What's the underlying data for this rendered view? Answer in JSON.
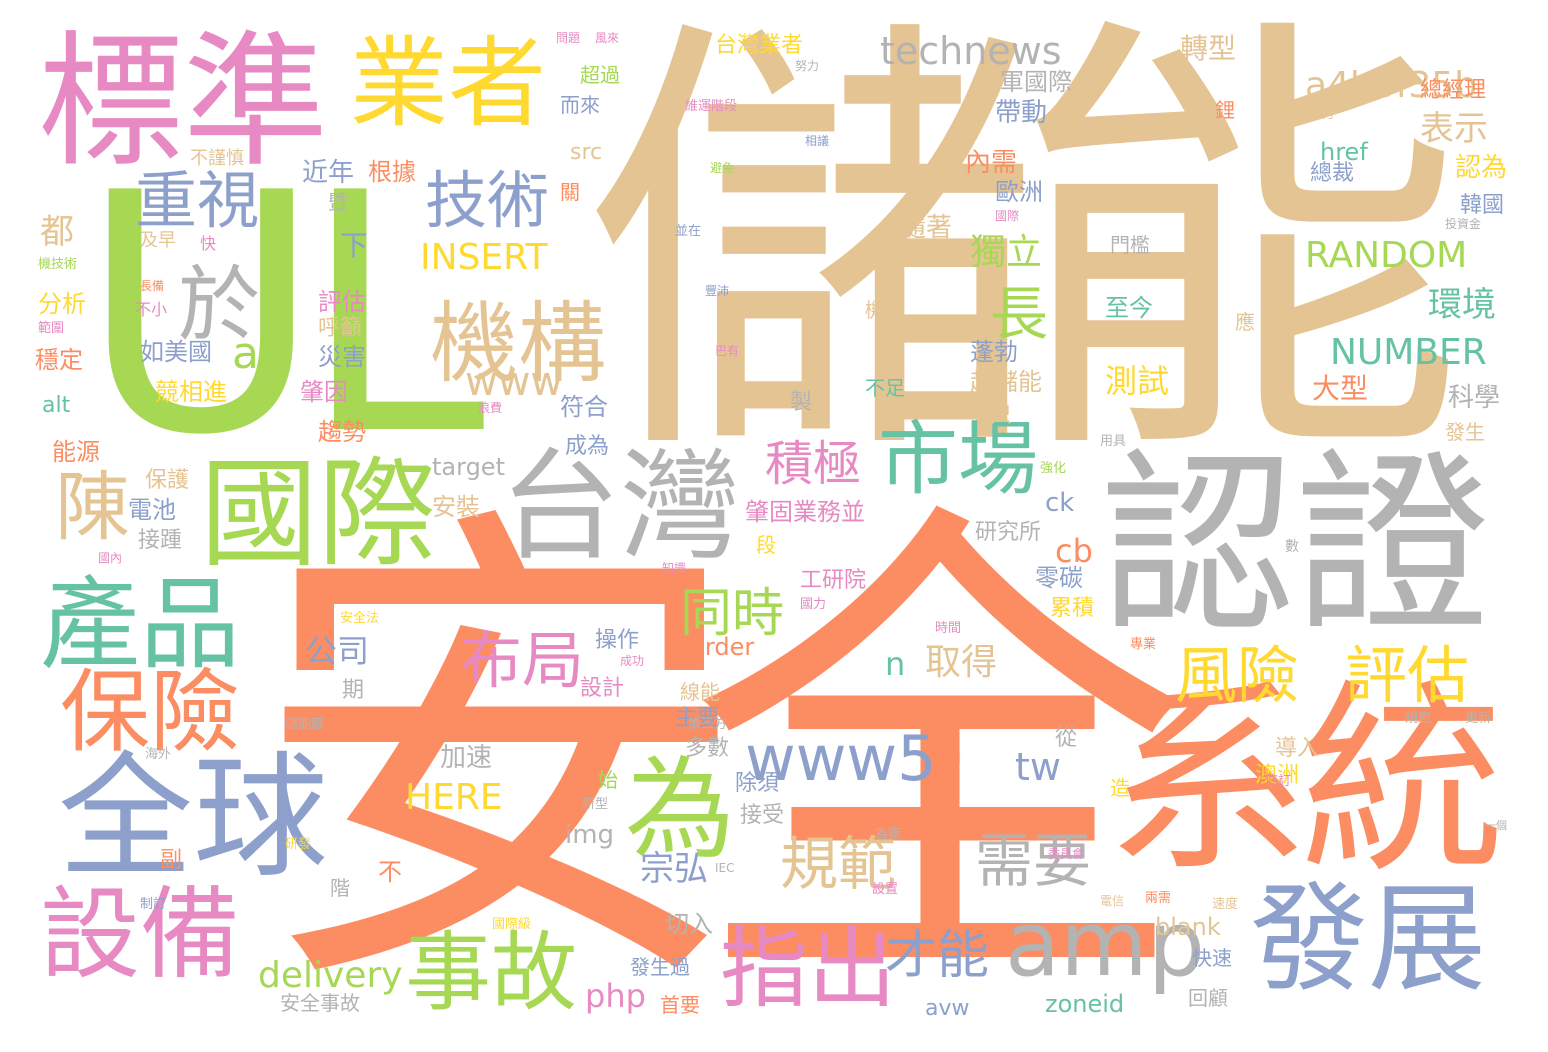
{
  "palette": {
    "tan": "#e5c494",
    "orange": "#fc8d62",
    "green": "#a6d854",
    "pink": "#e78ac3",
    "blue": "#8da0cb",
    "gray": "#b3b3b3",
    "teal": "#66c2a5",
    "yellow": "#ffd92f"
  },
  "words": [
    {
      "text": "儲能",
      "color": "#e5c494"
    },
    {
      "text": "安全",
      "color": "#fc8d62"
    },
    {
      "text": "UL",
      "color": "#a6d854"
    },
    {
      "text": "認證",
      "color": "#b3b3b3"
    },
    {
      "text": "系統",
      "color": "#fc8d62"
    },
    {
      "text": "標準",
      "color": "#e78ac3"
    },
    {
      "text": "台灣",
      "color": "#b3b3b3"
    },
    {
      "text": "國際",
      "color": "#a6d854"
    },
    {
      "text": "全球",
      "color": "#8da0cb"
    },
    {
      "text": "發展",
      "color": "#8da0cb"
    },
    {
      "text": "業者",
      "color": "#ffd92f"
    },
    {
      "text": "產品",
      "color": "#66c2a5"
    },
    {
      "text": "設備",
      "color": "#e78ac3"
    },
    {
      "text": "保險",
      "color": "#fc8d62"
    },
    {
      "text": "機構",
      "color": "#e5c494"
    },
    {
      "text": "市場",
      "color": "#66c2a5"
    },
    {
      "text": "為",
      "color": "#a6d854"
    },
    {
      "text": "amp",
      "color": "#b3b3b3"
    },
    {
      "text": "指出",
      "color": "#e78ac3"
    },
    {
      "text": "事故",
      "color": "#a6d854"
    },
    {
      "text": "於",
      "color": "#b3b3b3"
    },
    {
      "text": "陳",
      "color": "#e5c494"
    },
    {
      "text": "重視",
      "color": "#8da0cb"
    },
    {
      "text": "技術",
      "color": "#8da0cb"
    },
    {
      "text": "布局",
      "color": "#e78ac3"
    },
    {
      "text": "風險",
      "color": "#ffd92f"
    },
    {
      "text": "評估",
      "color": "#ffd92f"
    },
    {
      "text": "www5",
      "color": "#8da0cb"
    },
    {
      "text": "規範",
      "color": "#e5c494"
    },
    {
      "text": "需要",
      "color": "#b3b3b3"
    },
    {
      "text": "才能",
      "color": "#8da0cb"
    },
    {
      "text": "長",
      "color": "#a6d854"
    },
    {
      "text": "積極",
      "color": "#e78ac3"
    },
    {
      "text": "同時",
      "color": "#a6d854"
    },
    {
      "text": "technews",
      "color": "#b3b3b3"
    },
    {
      "text": "a4b3f35b",
      "color": "#e5c494"
    },
    {
      "text": "RANDOM",
      "color": "#a6d854"
    },
    {
      "text": "NUMBER",
      "color": "#66c2a5"
    },
    {
      "text": "INSERT",
      "color": "#ffd92f"
    },
    {
      "text": "HERE",
      "color": "#ffd92f"
    },
    {
      "text": "www",
      "color": "#e5c494"
    },
    {
      "text": "a",
      "color": "#a6d854"
    },
    {
      "text": "delivery",
      "color": "#a6d854"
    },
    {
      "text": "php",
      "color": "#e78ac3"
    },
    {
      "text": "tw",
      "color": "#8da0cb"
    },
    {
      "text": "n",
      "color": "#66c2a5"
    },
    {
      "text": "取得",
      "color": "#e5c494"
    },
    {
      "text": "公司",
      "color": "#8da0cb"
    },
    {
      "text": "宗弘",
      "color": "#8da0cb"
    },
    {
      "text": "cb",
      "color": "#fc8d62"
    },
    {
      "text": "ck",
      "color": "#8da0cb"
    },
    {
      "text": "border",
      "color": "#fc8d62"
    },
    {
      "text": "target",
      "color": "#b3b3b3"
    },
    {
      "text": "img",
      "color": "#b3b3b3"
    },
    {
      "text": "alt",
      "color": "#66c2a5"
    },
    {
      "text": "src",
      "color": "#e5c494"
    },
    {
      "text": "href",
      "color": "#66c2a5"
    },
    {
      "text": "blank",
      "color": "#e5c494"
    },
    {
      "text": "zoneid",
      "color": "#66c2a5"
    },
    {
      "text": "avw",
      "color": "#8da0cb"
    },
    {
      "text": "表示",
      "color": "#e5c494"
    },
    {
      "text": "環境",
      "color": "#66c2a5"
    },
    {
      "text": "測試",
      "color": "#ffd92f"
    },
    {
      "text": "獨立",
      "color": "#a6d854"
    },
    {
      "text": "轉型",
      "color": "#e5c494"
    },
    {
      "text": "大型",
      "color": "#fc8d62"
    },
    {
      "text": "科學",
      "color": "#b3b3b3"
    },
    {
      "text": "認為",
      "color": "#ffd92f"
    },
    {
      "text": "韓國",
      "color": "#8da0cb"
    },
    {
      "text": "總經理",
      "color": "#fc8d62"
    },
    {
      "text": "總裁",
      "color": "#8da0cb"
    },
    {
      "text": "台灣業者",
      "color": "#ffd92f"
    },
    {
      "text": "軍國際",
      "color": "#b3b3b3"
    },
    {
      "text": "帶動",
      "color": "#8da0cb"
    },
    {
      "text": "內需",
      "color": "#fc8d62"
    },
    {
      "text": "歐洲",
      "color": "#8da0cb"
    },
    {
      "text": "隨著",
      "color": "#e5c494"
    },
    {
      "text": "蓬勃",
      "color": "#8da0cb"
    },
    {
      "text": "起儲能",
      "color": "#e5c494"
    },
    {
      "text": "至今",
      "color": "#66c2a5"
    },
    {
      "text": "門檻",
      "color": "#b3b3b3"
    },
    {
      "text": "近年",
      "color": "#8da0cb"
    },
    {
      "text": "根據",
      "color": "#fc8d62"
    },
    {
      "text": "都",
      "color": "#e5c494"
    },
    {
      "text": "下",
      "color": "#8da0cb"
    },
    {
      "text": "評估",
      "color": "#e78ac3"
    },
    {
      "text": "呼籲",
      "color": "#e5c494"
    },
    {
      "text": "災害",
      "color": "#8da0cb"
    },
    {
      "text": "分析",
      "color": "#ffd92f"
    },
    {
      "text": "如美國",
      "color": "#8da0cb"
    },
    {
      "text": "穩定",
      "color": "#fc8d62"
    },
    {
      "text": "競相進",
      "color": "#ffd92f"
    },
    {
      "text": "肇因",
      "color": "#e78ac3"
    },
    {
      "text": "趨勢",
      "color": "#fc8d62"
    },
    {
      "text": "能源",
      "color": "#fc8d62"
    },
    {
      "text": "保護",
      "color": "#e5c494"
    },
    {
      "text": "電池",
      "color": "#8da0cb"
    },
    {
      "text": "接踵",
      "color": "#b3b3b3"
    },
    {
      "text": "符合",
      "color": "#8da0cb"
    },
    {
      "text": "成為",
      "color": "#8da0cb"
    },
    {
      "text": "只",
      "color": "#e5c494"
    },
    {
      "text": "肇固業務並",
      "color": "#e78ac3"
    },
    {
      "text": "安裝",
      "color": "#e5c494"
    },
    {
      "text": "研究所",
      "color": "#b3b3b3"
    },
    {
      "text": "零碳",
      "color": "#8da0cb"
    },
    {
      "text": "累積",
      "color": "#ffd92f"
    },
    {
      "text": "工研院",
      "color": "#e78ac3"
    },
    {
      "text": "操作",
      "color": "#8da0cb"
    },
    {
      "text": "設計",
      "color": "#e78ac3"
    },
    {
      "text": "主要",
      "color": "#8da0cb"
    },
    {
      "text": "加速",
      "color": "#b3b3b3"
    },
    {
      "text": "多數",
      "color": "#b3b3b3"
    },
    {
      "text": "除須",
      "color": "#8da0cb"
    },
    {
      "text": "接受",
      "color": "#b3b3b3"
    },
    {
      "text": "切入",
      "color": "#b3b3b3"
    },
    {
      "text": "發生過",
      "color": "#8da0cb"
    },
    {
      "text": "首要",
      "color": "#fc8d62"
    },
    {
      "text": "安全事故",
      "color": "#b3b3b3"
    },
    {
      "text": "回顧",
      "color": "#b3b3b3"
    },
    {
      "text": "快速",
      "color": "#8da0cb"
    },
    {
      "text": "澳洲",
      "color": "#ffd92f"
    },
    {
      "text": "導入",
      "color": "#e5c494"
    },
    {
      "text": "從",
      "color": "#b3b3b3"
    },
    {
      "text": "發生",
      "color": "#e5c494"
    },
    {
      "text": "超過",
      "color": "#a6d854"
    },
    {
      "text": "而來",
      "color": "#8da0cb"
    },
    {
      "text": "機制",
      "color": "#e5c494"
    },
    {
      "text": "不足",
      "color": "#66c2a5"
    },
    {
      "text": "不小",
      "color": "#e78ac3"
    },
    {
      "text": "不",
      "color": "#fc8d62"
    },
    {
      "text": "期",
      "color": "#b3b3b3"
    },
    {
      "text": "副",
      "color": "#fc8d62"
    },
    {
      "text": "階",
      "color": "#b3b3b3"
    },
    {
      "text": "段",
      "color": "#ffd92f"
    },
    {
      "text": "始",
      "color": "#a6d854"
    },
    {
      "text": "鋰",
      "color": "#fc8d62"
    },
    {
      "text": "造",
      "color": "#ffd92f"
    },
    {
      "text": "應",
      "color": "#e5c494"
    },
    {
      "text": "製",
      "color": "#b3b3b3"
    },
    {
      "text": "暨",
      "color": "#b3b3b3"
    },
    {
      "text": "關",
      "color": "#fc8d62"
    },
    {
      "text": "快",
      "color": "#e78ac3"
    },
    {
      "text": "及早",
      "color": "#e5c494"
    },
    {
      "text": "不謹慎",
      "color": "#e5c494"
    },
    {
      "text": "機技術",
      "color": "#a6d854"
    },
    {
      "text": "長備",
      "color": "#fc8d62"
    },
    {
      "text": "範圍",
      "color": "#e78ac3"
    },
    {
      "text": "線能",
      "color": "#e5c494"
    },
    {
      "text": "成功",
      "color": "#e78ac3"
    },
    {
      "text": "第三方",
      "color": "#b3b3b3"
    },
    {
      "text": "儲能廠",
      "color": "#b3b3b3"
    },
    {
      "text": "海外",
      "color": "#b3b3b3"
    },
    {
      "text": "研發",
      "color": "#ffd92f"
    },
    {
      "text": "制訂",
      "color": "#8da0cb"
    },
    {
      "text": "新型",
      "color": "#b3b3b3"
    },
    {
      "text": "國際級",
      "color": "#ffd92f"
    },
    {
      "text": "證備",
      "color": "#fc8d62"
    },
    {
      "text": "為廠",
      "color": "#b3b3b3"
    },
    {
      "text": "設置",
      "color": "#e78ac3"
    },
    {
      "text": "速度",
      "color": "#e5c494"
    },
    {
      "text": "兩需",
      "color": "#fc8d62"
    },
    {
      "text": "更新",
      "color": "#b3b3b3"
    },
    {
      "text": "修訂",
      "color": "#e78ac3"
    },
    {
      "text": "規範",
      "color": "#b3b3b3"
    },
    {
      "text": "專業",
      "color": "#fc8d62"
    },
    {
      "text": "時間",
      "color": "#e78ac3"
    },
    {
      "text": "國力",
      "color": "#e78ac3"
    },
    {
      "text": "強化",
      "color": "#a6d854"
    },
    {
      "text": "用具",
      "color": "#b3b3b3"
    },
    {
      "text": "浪費",
      "color": "#e78ac3"
    },
    {
      "text": "巴有",
      "color": "#e78ac3"
    },
    {
      "text": "豐沛",
      "color": "#8da0cb"
    },
    {
      "text": "並在",
      "color": "#8da0cb"
    },
    {
      "text": "避免",
      "color": "#a6d854"
    },
    {
      "text": "國際",
      "color": "#e78ac3"
    },
    {
      "text": "投資金",
      "color": "#b3b3b3"
    },
    {
      "text": "實力",
      "color": "#e5c494"
    },
    {
      "text": "努力",
      "color": "#b3b3b3"
    },
    {
      "text": "場域",
      "color": "#e5c494"
    },
    {
      "text": "維運階段",
      "color": "#e78ac3"
    },
    {
      "text": "風來",
      "color": "#e78ac3"
    },
    {
      "text": "問題",
      "color": "#e78ac3"
    },
    {
      "text": "相議",
      "color": "#8da0cb"
    },
    {
      "text": "知識",
      "color": "#e78ac3"
    },
    {
      "text": "國內",
      "color": "#e78ac3"
    },
    {
      "text": "安全法",
      "color": "#ffd92f"
    },
    {
      "text": "IEC",
      "color": "#b3b3b3"
    },
    {
      "text": "委員會",
      "color": "#e78ac3"
    },
    {
      "text": "數",
      "color": "#b3b3b3"
    },
    {
      "text": "一個",
      "color": "#b3b3b3"
    },
    {
      "text": "電信",
      "color": "#e5c494"
    }
  ]
}
